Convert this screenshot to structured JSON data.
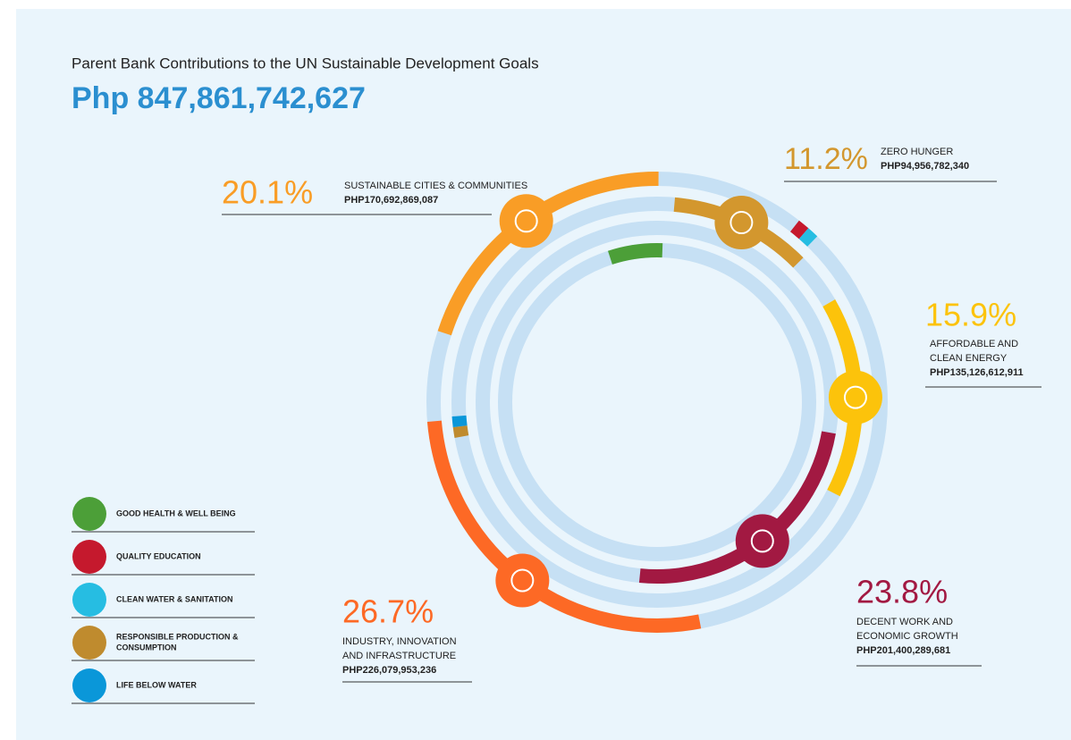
{
  "chart_data": {
    "type": "radial",
    "title": "Parent Bank Contributions to the UN Sustainable Development Goals",
    "total": "Php 847,861,742,627",
    "goals": [
      {
        "value": 20.1,
        "value_label": "20.1%",
        "name_lines": [
          "SUSTAINABLE CITIES & COMMUNITIES"
        ],
        "amount": "PHP170,692,869,087",
        "color": "#f99d26"
      },
      {
        "value": 11.2,
        "value_label": "11.2%",
        "name_lines": [
          "ZERO HUNGER"
        ],
        "amount": "PHP94,956,782,340",
        "color": "#d3972e"
      },
      {
        "value": 15.9,
        "value_label": "15.9%",
        "name_lines": [
          "AFFORDABLE AND",
          "CLEAN ENERGY"
        ],
        "amount": "PHP135,126,612,911",
        "color": "#fcc30b"
      },
      {
        "value": 23.8,
        "value_label": "23.8%",
        "name_lines": [
          "DECENT WORK AND",
          "ECONOMIC GROWTH"
        ],
        "amount": "PHP201,400,289,681",
        "color": "#a21942"
      },
      {
        "value": 26.7,
        "value_label": "26.7%",
        "name_lines": [
          "INDUSTRY, INNOVATION",
          "AND INFRASTRUCTURE"
        ],
        "amount": "PHP226,079,953,236",
        "color": "#fd6925"
      }
    ],
    "legend": [
      {
        "name_lines": [
          "GOOD HEALTH & WELL BEING"
        ],
        "color": "#4c9f38"
      },
      {
        "name_lines": [
          "QUALITY EDUCATION"
        ],
        "color": "#c5192d"
      },
      {
        "name_lines": [
          "CLEAN WATER & SANITATION"
        ],
        "color": "#26bde2"
      },
      {
        "name_lines": [
          "RESPONSIBLE PRODUCTION &",
          "CONSUMPTION"
        ],
        "color": "#bf8b2e"
      },
      {
        "name_lines": [
          "LIFE BELOW WATER"
        ],
        "color": "#0a97d9"
      }
    ]
  }
}
